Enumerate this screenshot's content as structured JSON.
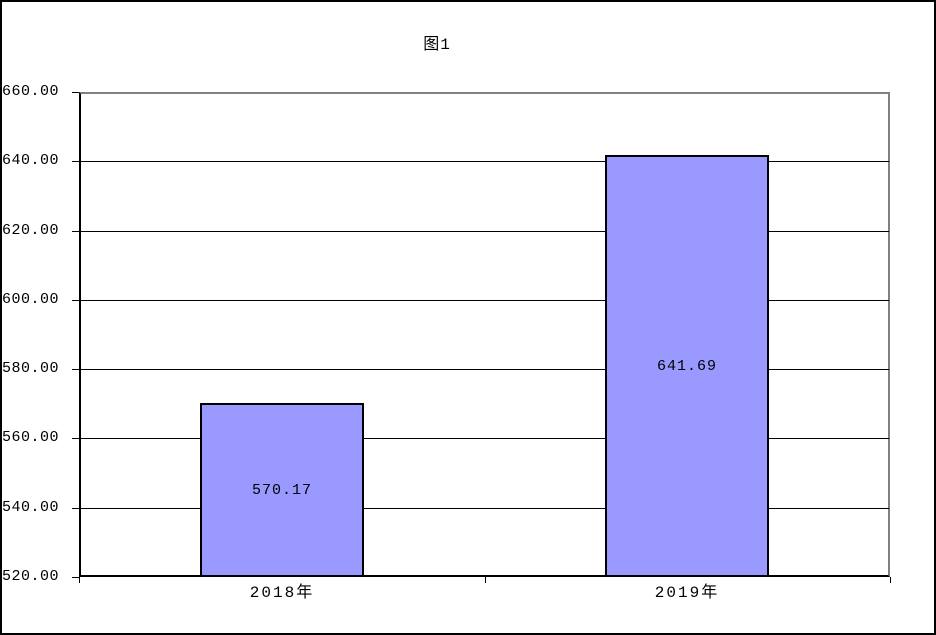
{
  "chart_data": {
    "type": "bar",
    "title": "图1",
    "categories": [
      "2018年",
      "2019年"
    ],
    "values": [
      570.17,
      641.69
    ],
    "data_labels": [
      "570.17",
      "641.69"
    ],
    "xlabel": "",
    "ylabel": "",
    "ylim": [
      520,
      660
    ],
    "ytick_step": 20,
    "ytick_labels": [
      "520.00",
      "540.00",
      "560.00",
      "580.00",
      "600.00",
      "620.00",
      "640.00",
      "660.00"
    ],
    "grid": true,
    "legend_position": "none",
    "colors": {
      "bar_fill": "#9999ff",
      "bar_border": "#000000",
      "gridline": "#000000",
      "axis": "#000000",
      "plot_border": "#808080",
      "background": "#ffffff",
      "text": "#000000"
    }
  }
}
